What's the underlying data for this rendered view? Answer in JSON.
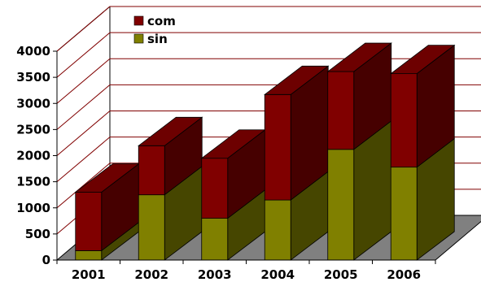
{
  "chart_data": {
    "type": "bar",
    "stacked": true,
    "three_d": true,
    "categories": [
      "2001",
      "2002",
      "2003",
      "2004",
      "2005",
      "2006"
    ],
    "series": [
      {
        "name": "sin",
        "values": [
          180,
          1250,
          800,
          1150,
          2120,
          1780
        ]
      },
      {
        "name": "com",
        "values": [
          1120,
          940,
          1150,
          2020,
          1490,
          1790
        ]
      }
    ],
    "ylim": [
      0,
      4000
    ],
    "yticks": [
      "0",
      "500",
      "1000",
      "1500",
      "2000",
      "2500",
      "3000",
      "3500",
      "4000"
    ],
    "grid": "horizontal",
    "legend_position": "top-left",
    "colors": {
      "sin": "#808000",
      "com": "#800000",
      "floor": "#808080",
      "grid": "#800000",
      "axis": "#000000"
    }
  }
}
